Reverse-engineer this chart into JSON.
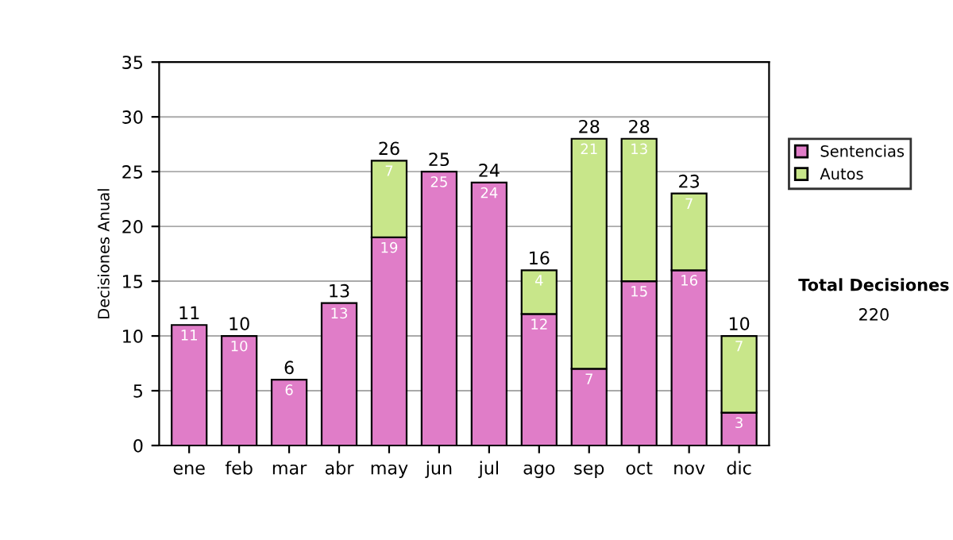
{
  "chart_data": {
    "type": "bar",
    "stacked": true,
    "ylabel": "Decisiones Anual",
    "categories": [
      "ene",
      "feb",
      "mar",
      "abr",
      "may",
      "jun",
      "jul",
      "ago",
      "sep",
      "oct",
      "nov",
      "dic"
    ],
    "series": [
      {
        "name": "Sentencias",
        "color": "#e07dc8",
        "values": [
          11,
          10,
          6,
          13,
          19,
          25,
          24,
          12,
          7,
          15,
          16,
          3
        ],
        "value_labels": [
          "11",
          "10",
          "6",
          "13",
          "19",
          "25",
          "24",
          "12",
          "7",
          "15",
          "16",
          "3"
        ]
      },
      {
        "name": "Autos",
        "color": "#c8e68a",
        "values": [
          null,
          null,
          null,
          null,
          7,
          null,
          null,
          4,
          21,
          13,
          7,
          7
        ],
        "value_labels": [
          null,
          null,
          null,
          null,
          "7",
          null,
          null,
          "4",
          "21",
          "13",
          "7",
          "7"
        ]
      }
    ],
    "totals": [
      "11",
      "10",
      "6",
      "13",
      "26",
      "25",
      "24",
      "16",
      "28",
      "28",
      "23",
      "10"
    ],
    "ylim": [
      0,
      35
    ],
    "yticks": [
      0,
      5,
      10,
      15,
      20,
      25,
      30,
      35
    ],
    "grid": "y",
    "legend": "right",
    "annotations": [
      "Total Decisiones",
      "220"
    ]
  }
}
